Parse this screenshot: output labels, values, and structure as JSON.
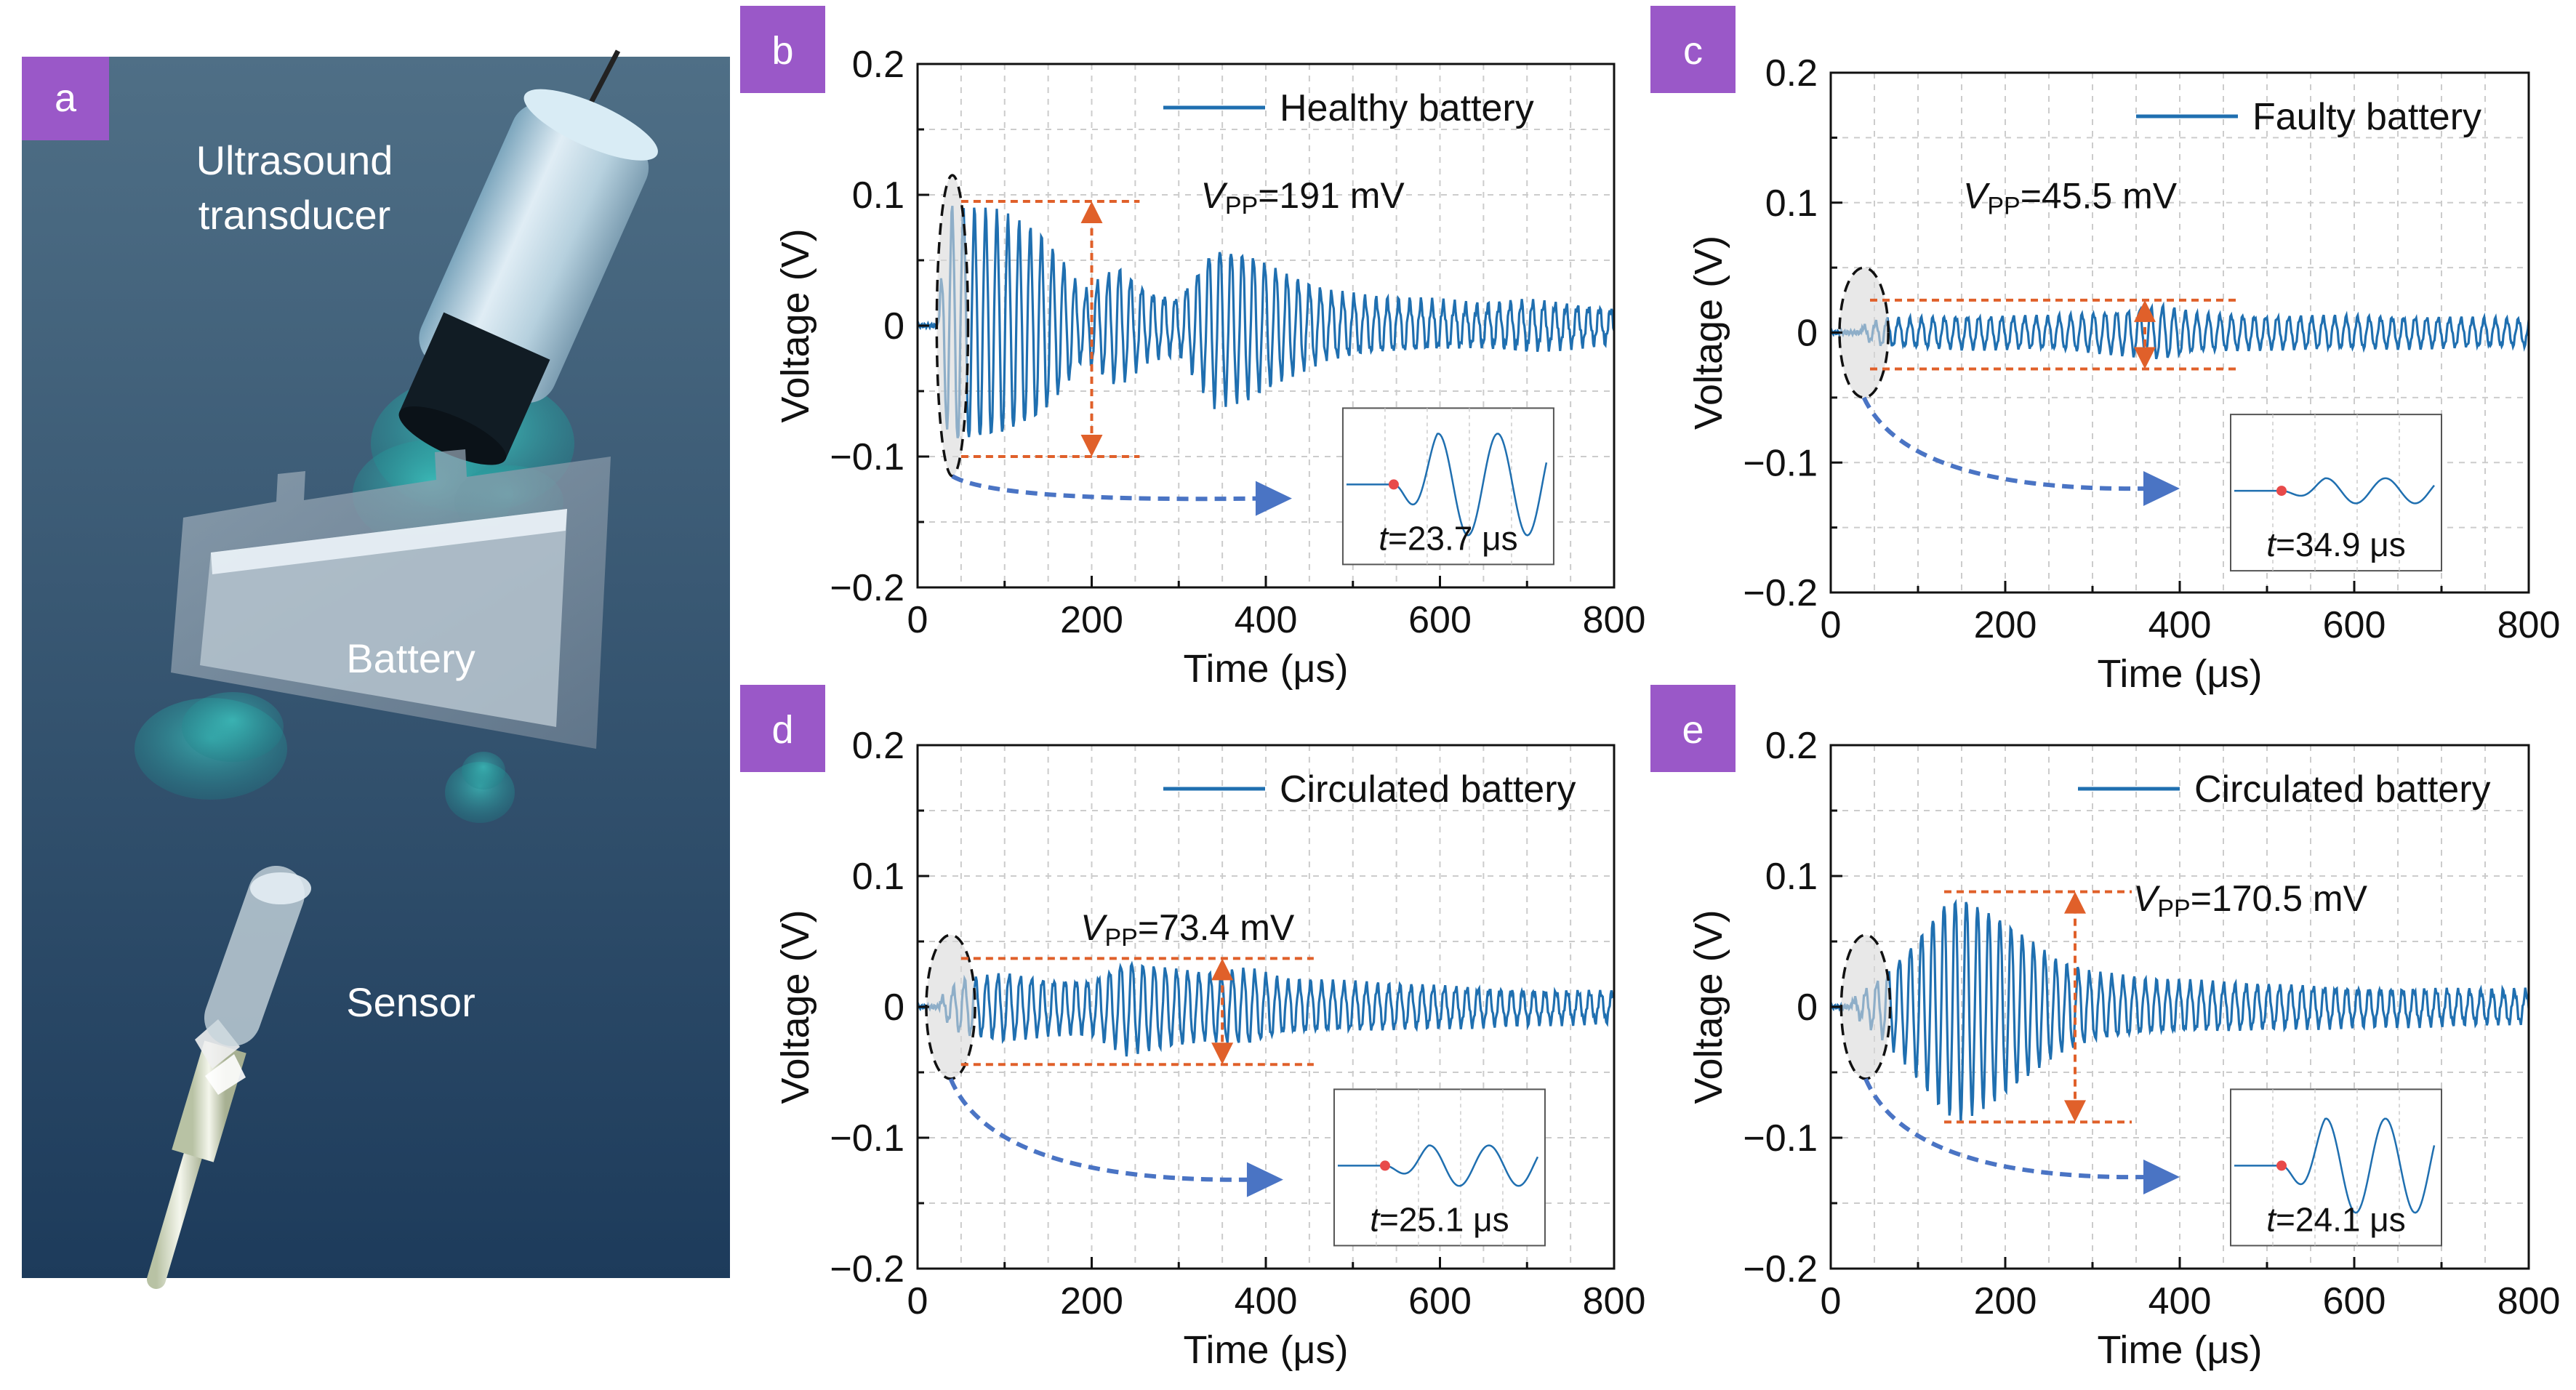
{
  "colors": {
    "signal": "#1f6fb0",
    "arrow": "#e0602a",
    "dashed_arrow": "#4a74c4",
    "tag_bg": "#9a58c8",
    "scene_bg_top": "#4f6f86",
    "scene_bg_bottom": "#1d3b5b",
    "grid": "#cccccc",
    "onset_marker": "#e84a4a"
  },
  "panel_a": {
    "tag": "a",
    "labels": {
      "transducer_line1": "Ultrasound",
      "transducer_line2": "transducer",
      "battery": "Battery",
      "sensor": "Sensor"
    }
  },
  "chart_data": [
    {
      "id": "b",
      "tag": "b",
      "type": "line",
      "legend": "Healthy battery",
      "vpp_label": "V",
      "vpp_sub": "PP",
      "vpp_value": "=191 mV",
      "vpp_mV": 191,
      "onset_label": "t",
      "onset_value": "=23.7 μs",
      "onset_us": 23.7,
      "xlabel": "Time (μs)",
      "ylabel": "Voltage (V)",
      "xlim": [
        0,
        800
      ],
      "ylim": [
        -0.2,
        0.2
      ],
      "xticks": [
        0,
        200,
        400,
        600,
        800
      ],
      "xtick_labels": [
        "0",
        "200",
        "400",
        "600",
        "800"
      ],
      "yticks": [
        0.2,
        0.1,
        0,
        -0.1,
        -0.2
      ],
      "ytick_labels": [
        "0.2",
        "0.1",
        "0",
        "−0.1",
        "−0.2"
      ],
      "arrow_x_us": 200,
      "arrow_top_V": 0.095,
      "arrow_bottom_V": -0.1,
      "line_x_range_us": [
        50,
        255
      ],
      "ellipse_center_us": 40,
      "ellipse_center_V": 0,
      "ellipse_half_us": 18,
      "ellipse_half_V": 0.115,
      "curved_arrow_end_us": 430,
      "curved_arrow_end_V": -0.132,
      "series": [
        {
          "name": "Healthy battery",
          "onset_us": 23.7,
          "freq_cycles_per_us": 0.078,
          "noise_V": 0.004,
          "envelope_points": [
            [
              23.7,
              0.01
            ],
            [
              35,
              0.09
            ],
            [
              50,
              0.09
            ],
            [
              95,
              0.085
            ],
            [
              140,
              0.07
            ],
            [
              170,
              0.045
            ],
            [
              190,
              0.025
            ],
            [
              230,
              0.045
            ],
            [
              265,
              0.025
            ],
            [
              300,
              0.02
            ],
            [
              340,
              0.06
            ],
            [
              380,
              0.055
            ],
            [
              420,
              0.04
            ],
            [
              470,
              0.025
            ],
            [
              520,
              0.02
            ],
            [
              580,
              0.018
            ],
            [
              640,
              0.015
            ],
            [
              700,
              0.018
            ],
            [
              750,
              0.015
            ],
            [
              800,
              0.012
            ]
          ]
        }
      ]
    },
    {
      "id": "c",
      "tag": "c",
      "type": "line",
      "legend": "Faulty battery",
      "vpp_label": "V",
      "vpp_sub": "PP",
      "vpp_value": "=45.5 mV",
      "vpp_mV": 45.5,
      "onset_label": "t",
      "onset_value": "=34.9 μs",
      "onset_us": 34.9,
      "xlabel": "Time (μs)",
      "ylabel": "Voltage (V)",
      "xlim": [
        0,
        800
      ],
      "ylim": [
        -0.2,
        0.2
      ],
      "xticks": [
        0,
        200,
        400,
        600,
        800
      ],
      "xtick_labels": [
        "0",
        "200",
        "400",
        "600",
        "800"
      ],
      "yticks": [
        0.2,
        0.1,
        0,
        -0.1,
        -0.2
      ],
      "ytick_labels": [
        "0.2",
        "0.1",
        "0",
        "−0.1",
        "−0.2"
      ],
      "arrow_x_us": 360,
      "arrow_top_V": 0.025,
      "arrow_bottom_V": -0.028,
      "line_x_range_us": [
        45,
        465
      ],
      "ellipse_center_us": 38,
      "ellipse_center_V": 0,
      "ellipse_half_us": 28,
      "ellipse_half_V": 0.05,
      "curved_arrow_end_us": 400,
      "curved_arrow_end_V": -0.12,
      "series": [
        {
          "name": "Faulty battery",
          "onset_us": 34.9,
          "freq_cycles_per_us": 0.076,
          "noise_V": 0.002,
          "envelope_points": [
            [
              34.9,
              0.004
            ],
            [
              60,
              0.01
            ],
            [
              150,
              0.012
            ],
            [
              250,
              0.012
            ],
            [
              330,
              0.016
            ],
            [
              380,
              0.02
            ],
            [
              420,
              0.014
            ],
            [
              500,
              0.012
            ],
            [
              600,
              0.012
            ],
            [
              700,
              0.011
            ],
            [
              800,
              0.01
            ]
          ]
        }
      ]
    },
    {
      "id": "d",
      "tag": "d",
      "type": "line",
      "legend": "Circulated battery",
      "vpp_label": "V",
      "vpp_sub": "PP",
      "vpp_value": "=73.4 mV",
      "vpp_mV": 73.4,
      "onset_label": "t",
      "onset_value": "=25.1 μs",
      "onset_us": 25.1,
      "xlabel": "Time (μs)",
      "ylabel": "Voltage (V)",
      "xlim": [
        0,
        800
      ],
      "ylim": [
        -0.2,
        0.2
      ],
      "xticks": [
        0,
        200,
        400,
        600,
        800
      ],
      "xtick_labels": [
        "0",
        "200",
        "400",
        "600",
        "800"
      ],
      "yticks": [
        0.2,
        0.1,
        0,
        -0.1,
        -0.2
      ],
      "ytick_labels": [
        "0.2",
        "0.1",
        "0",
        "−0.1",
        "−0.2"
      ],
      "arrow_x_us": 350,
      "arrow_top_V": 0.037,
      "arrow_bottom_V": -0.044,
      "line_x_range_us": [
        50,
        455
      ],
      "ellipse_center_us": 38,
      "ellipse_center_V": 0,
      "ellipse_half_us": 28,
      "ellipse_half_V": 0.055,
      "curved_arrow_end_us": 420,
      "curved_arrow_end_V": -0.132,
      "series": [
        {
          "name": "Circulated battery",
          "onset_us": 25.1,
          "freq_cycles_per_us": 0.078,
          "noise_V": 0.003,
          "envelope_points": [
            [
              25.1,
              0.005
            ],
            [
              50,
              0.02
            ],
            [
              100,
              0.025
            ],
            [
              150,
              0.02
            ],
            [
              200,
              0.02
            ],
            [
              240,
              0.035
            ],
            [
              280,
              0.03
            ],
            [
              330,
              0.025
            ],
            [
              380,
              0.028
            ],
            [
              420,
              0.02
            ],
            [
              480,
              0.018
            ],
            [
              560,
              0.016
            ],
            [
              640,
              0.014
            ],
            [
              720,
              0.012
            ],
            [
              800,
              0.011
            ]
          ]
        }
      ]
    },
    {
      "id": "e",
      "tag": "e",
      "type": "line",
      "legend": "Circulated battery",
      "vpp_label": "V",
      "vpp_sub": "PP",
      "vpp_value": "=170.5 mV",
      "vpp_mV": 170.5,
      "onset_label": "t",
      "onset_value": "=24.1 μs",
      "onset_us": 24.1,
      "xlabel": "Time (μs)",
      "ylabel": "Voltage (V)",
      "xlim": [
        0,
        800
      ],
      "ylim": [
        -0.2,
        0.2
      ],
      "xticks": [
        0,
        200,
        400,
        600,
        800
      ],
      "xtick_labels": [
        "0",
        "200",
        "400",
        "600",
        "800"
      ],
      "yticks": [
        0.2,
        0.1,
        0,
        -0.1,
        -0.2
      ],
      "ytick_labels": [
        "0.2",
        "0.1",
        "0",
        "−0.1",
        "−0.2"
      ],
      "arrow_x_us": 280,
      "arrow_top_V": 0.088,
      "arrow_bottom_V": -0.088,
      "line_x_range_us": [
        130,
        345
      ],
      "ellipse_center_us": 40,
      "ellipse_center_V": 0,
      "ellipse_half_us": 28,
      "ellipse_half_V": 0.055,
      "curved_arrow_end_us": 400,
      "curved_arrow_end_V": -0.13,
      "series": [
        {
          "name": "Circulated battery",
          "onset_us": 24.1,
          "freq_cycles_per_us": 0.078,
          "noise_V": 0.003,
          "envelope_points": [
            [
              24.1,
              0.004
            ],
            [
              55,
              0.02
            ],
            [
              90,
              0.045
            ],
            [
              130,
              0.08
            ],
            [
              150,
              0.085
            ],
            [
              190,
              0.07
            ],
            [
              230,
              0.05
            ],
            [
              260,
              0.035
            ],
            [
              300,
              0.025
            ],
            [
              360,
              0.02
            ],
            [
              420,
              0.018
            ],
            [
              500,
              0.016
            ],
            [
              600,
              0.014
            ],
            [
              700,
              0.013
            ],
            [
              800,
              0.012
            ]
          ]
        }
      ]
    }
  ]
}
